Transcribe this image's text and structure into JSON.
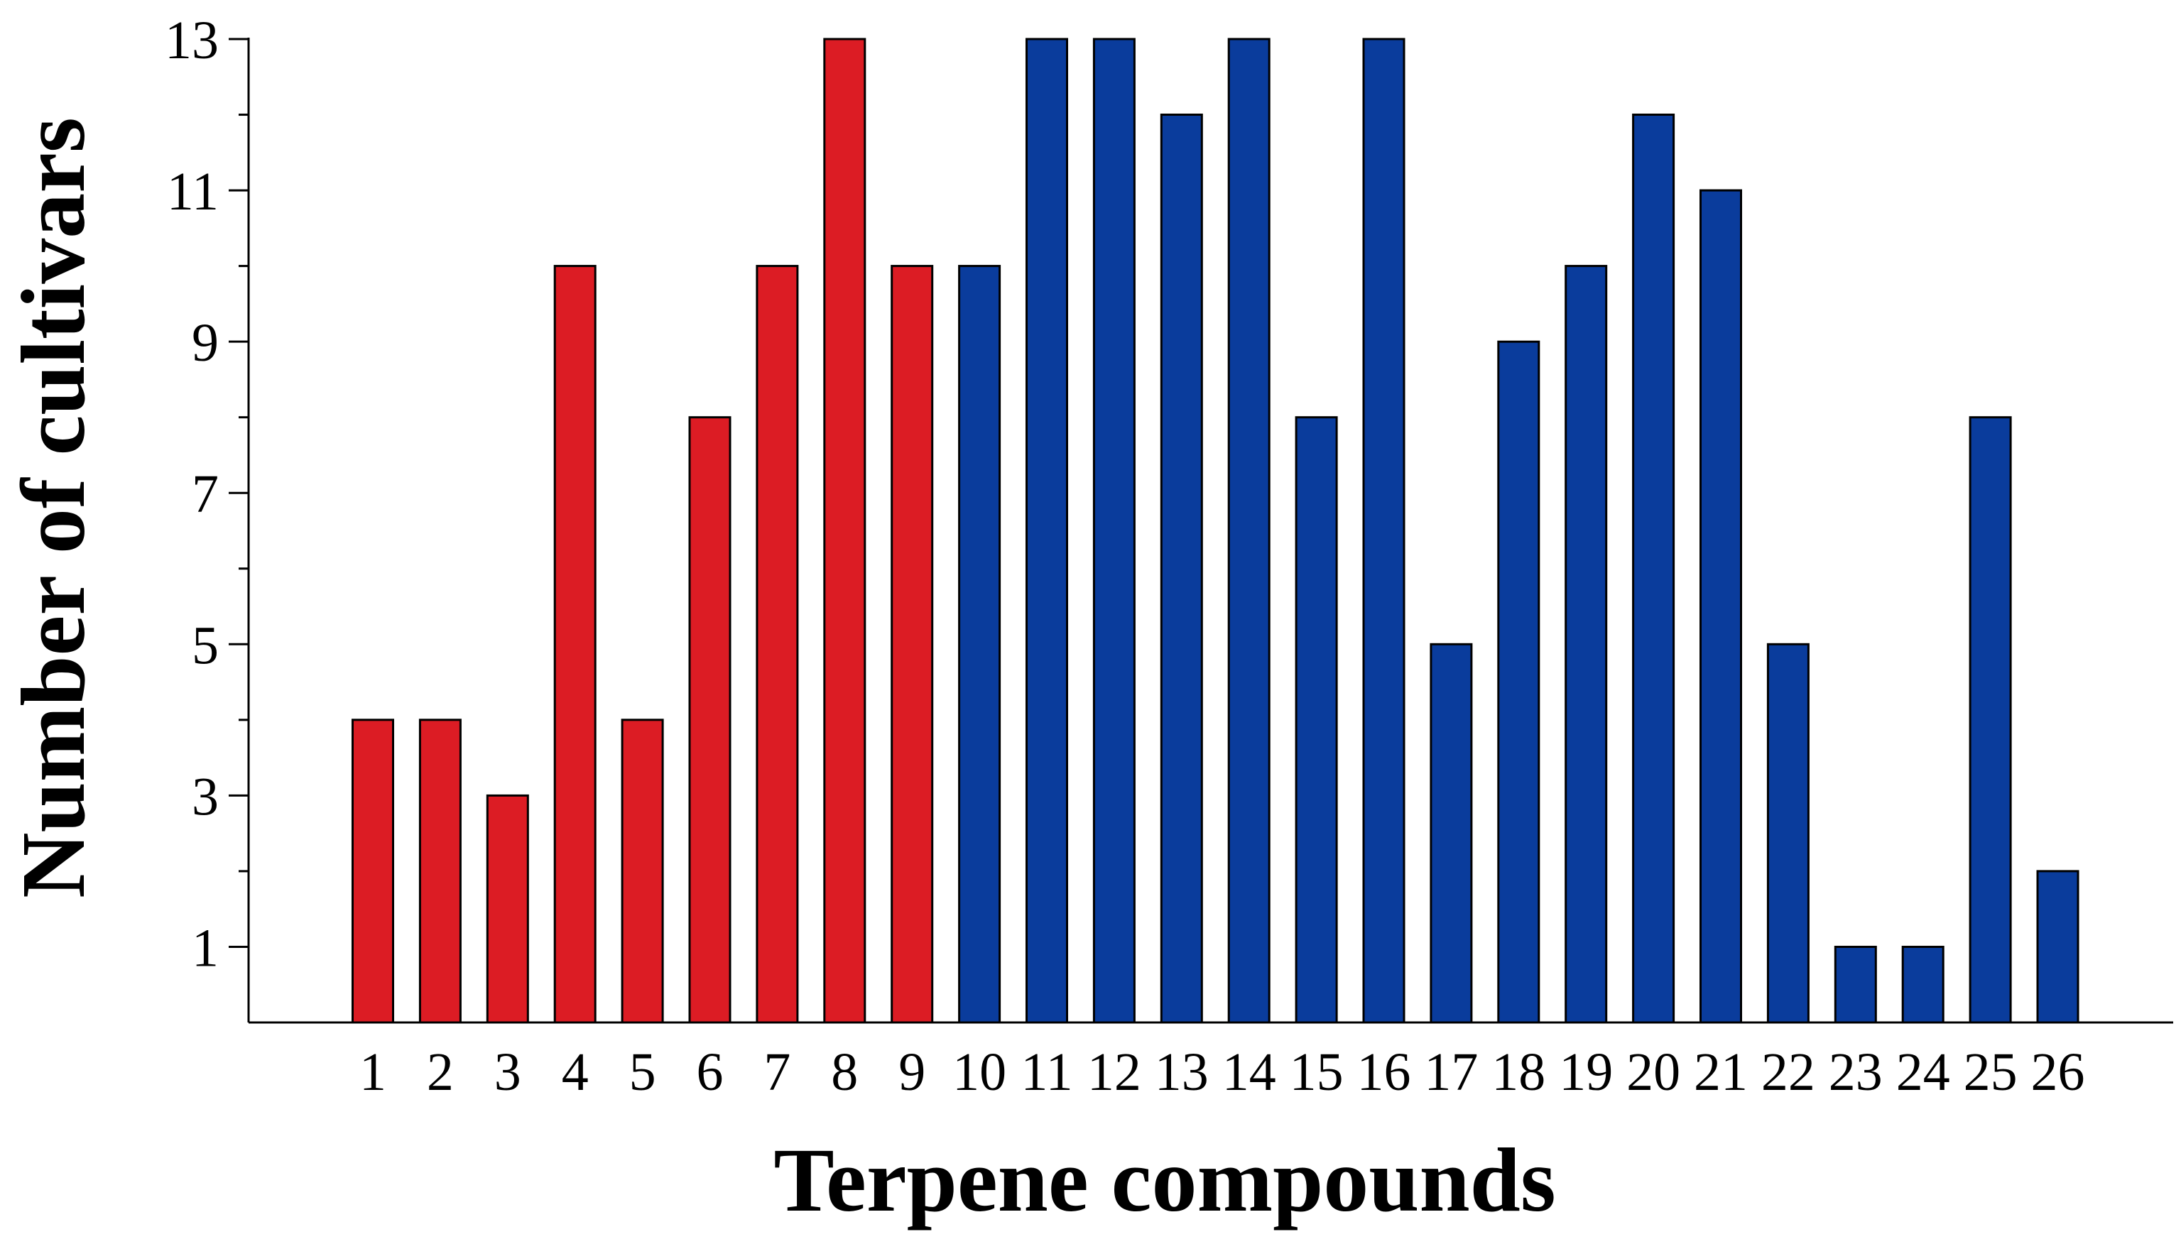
{
  "chart_data": {
    "type": "bar",
    "xlabel": "Terpene compounds",
    "ylabel": "Number of cultivars",
    "categories": [
      "1",
      "2",
      "3",
      "4",
      "5",
      "6",
      "7",
      "8",
      "9",
      "10",
      "11",
      "12",
      "13",
      "14",
      "15",
      "16",
      "17",
      "18",
      "19",
      "20",
      "21",
      "22",
      "23",
      "24",
      "25",
      "26"
    ],
    "values": [
      4,
      4,
      3,
      10,
      4,
      8,
      10,
      13,
      10,
      10,
      13,
      13,
      12,
      13,
      8,
      13,
      5,
      9,
      10,
      12,
      11,
      5,
      1,
      1,
      8,
      2
    ],
    "bar_colors": [
      "#dc1c24",
      "#dc1c24",
      "#dc1c24",
      "#dc1c24",
      "#dc1c24",
      "#dc1c24",
      "#dc1c24",
      "#dc1c24",
      "#dc1c24",
      "#0a3c9c",
      "#0a3c9c",
      "#0a3c9c",
      "#0a3c9c",
      "#0a3c9c",
      "#0a3c9c",
      "#0a3c9c",
      "#0a3c9c",
      "#0a3c9c",
      "#0a3c9c",
      "#0a3c9c",
      "#0a3c9c",
      "#0a3c9c",
      "#0a3c9c",
      "#0a3c9c",
      "#0a3c9c",
      "#0a3c9c"
    ],
    "ylim": [
      0,
      13
    ],
    "yticks_major": [
      1,
      3,
      5,
      7,
      9,
      11,
      13
    ],
    "yticks_minor": [
      2,
      4,
      6,
      8,
      10,
      12
    ],
    "grid": false,
    "legend": "none"
  }
}
